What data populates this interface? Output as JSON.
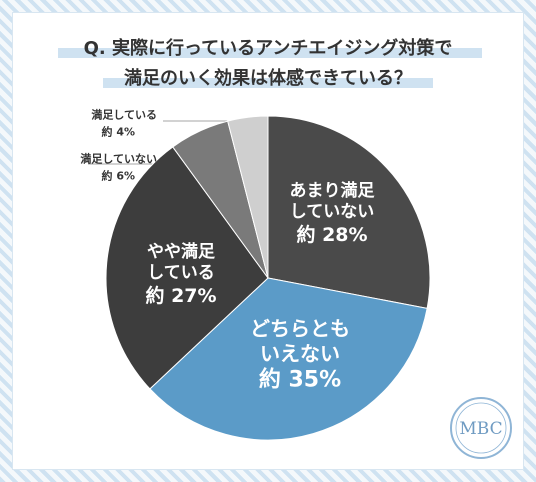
{
  "chart_data": {
    "type": "pie",
    "title_lines": [
      "Q. 実際に行っているアンチエイジング対策で",
      "満足のいく効果は体感できている？"
    ],
    "categories": [
      "あまり満足していない",
      "どちらともいえない",
      "やや満足している",
      "満足していない",
      "満足している"
    ],
    "values": [
      28,
      35,
      27,
      6,
      4
    ],
    "value_labels": [
      "約 28%",
      "約 35%",
      "約 27%",
      "約 6%",
      "約 4%"
    ],
    "colors": [
      "#4a4a4a",
      "#5b9bc8",
      "#3d3d3d",
      "#7a7a7a",
      "#cfcfcf"
    ],
    "logo": "MBC"
  }
}
